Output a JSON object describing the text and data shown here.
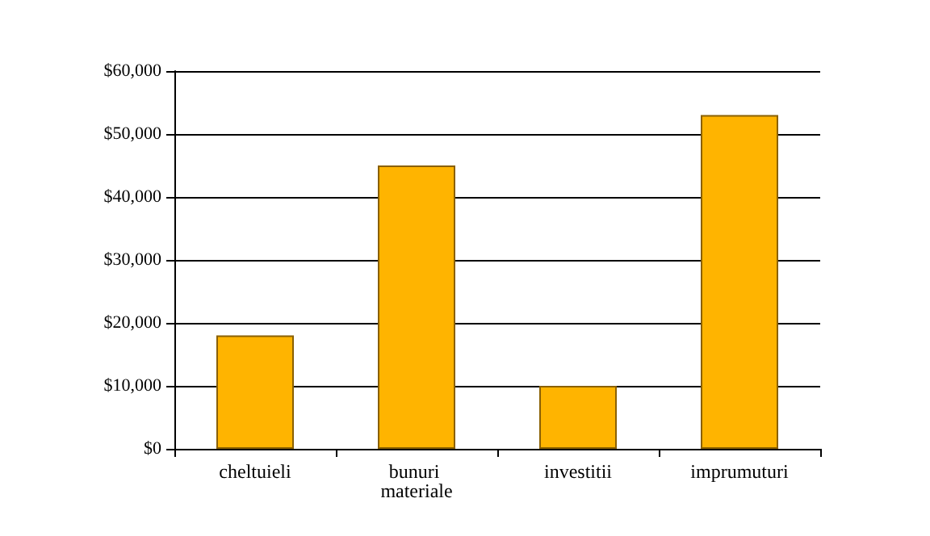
{
  "chart_data": {
    "type": "bar",
    "categories": [
      "cheltuieli",
      "bunuri materiale",
      "investitii",
      "imprumuturi"
    ],
    "values": [
      18000,
      45000,
      10000,
      53000
    ],
    "color": "#ffb400",
    "ylim": [
      0,
      60000
    ],
    "yticks": [
      {
        "value": 0,
        "label": "$0"
      },
      {
        "value": 10000,
        "label": "$10,000"
      },
      {
        "value": 20000,
        "label": "$20,000"
      },
      {
        "value": 30000,
        "label": "$30,000"
      },
      {
        "value": 40000,
        "label": "$40,000"
      },
      {
        "value": 50000,
        "label": "$50,000"
      },
      {
        "value": 60000,
        "label": "$60,000"
      }
    ],
    "grid": true
  }
}
